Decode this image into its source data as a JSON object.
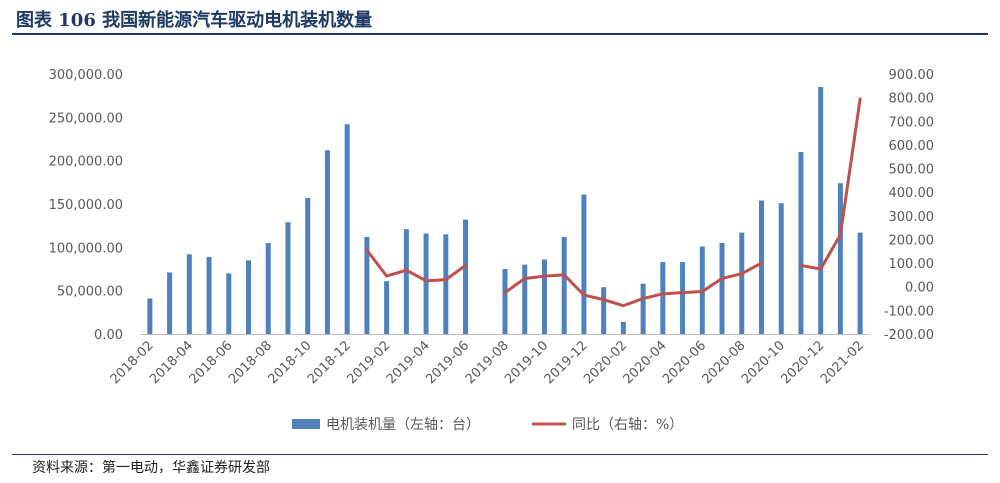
{
  "title": "图表 106 我国新能源汽车驱动电机装机数量",
  "source": "资料来源：第一电动，华鑫证券研发部",
  "colors": {
    "bar": "#4f81bd",
    "line": "#c0504d",
    "title": "#1f3a63"
  },
  "chart_data": {
    "type": "bar",
    "categories": [
      "2018-02",
      "2018-03",
      "2018-04",
      "2018-05",
      "2018-06",
      "2018-07",
      "2018-08",
      "2018-09",
      "2018-10",
      "2018-11",
      "2018-12",
      "2019-01",
      "2019-02",
      "2019-03",
      "2019-04",
      "2019-05",
      "2019-06",
      "2019-07",
      "2019-08",
      "2019-09",
      "2019-10",
      "2019-11",
      "2019-12",
      "2020-01",
      "2020-02",
      "2020-03",
      "2020-04",
      "2020-05",
      "2020-06",
      "2020-07",
      "2020-08",
      "2020-09",
      "2020-10",
      "2020-11",
      "2020-12",
      "2021-01",
      "2021-02"
    ],
    "x_tick_labels": [
      "2018-02",
      "2018-04",
      "2018-06",
      "2018-08",
      "2018-10",
      "2018-12",
      "2019-02",
      "2019-04",
      "2019-06",
      "2019-08",
      "2019-10",
      "2019-12",
      "2020-02",
      "2020-04",
      "2020-06",
      "2020-08",
      "2020-10",
      "2020-12",
      "2021-02"
    ],
    "series": [
      {
        "name": "电机装机量（左轴：台）",
        "type": "bar",
        "axis": "left",
        "values": [
          41000,
          71000,
          92000,
          89000,
          70000,
          85000,
          105000,
          129000,
          157000,
          212000,
          242000,
          112000,
          61000,
          121000,
          116000,
          115000,
          132000,
          null,
          75000,
          80000,
          86000,
          112000,
          161000,
          54000,
          14000,
          58000,
          83000,
          83000,
          101000,
          105000,
          117000,
          154000,
          151000,
          210000,
          285000,
          174000,
          117000
        ]
      },
      {
        "name": "同比（右轴：%）",
        "type": "line",
        "axis": "right",
        "values": [
          null,
          null,
          null,
          null,
          null,
          null,
          null,
          null,
          null,
          null,
          null,
          155,
          45,
          70,
          25,
          30,
          90,
          null,
          -25,
          35,
          45,
          50,
          -35,
          -55,
          -80,
          -50,
          -30,
          -25,
          -20,
          35,
          55,
          100,
          null,
          90,
          75,
          220,
          795
        ]
      }
    ],
    "y_left": {
      "min": 0,
      "max": 300000,
      "step": 50000,
      "tick_labels": [
        "0.00",
        "50,000.00",
        "100,000.00",
        "150,000.00",
        "200,000.00",
        "250,000.00",
        "300,000.00"
      ]
    },
    "y_right": {
      "min": -200,
      "max": 900,
      "step": 100,
      "tick_labels": [
        "-200.00",
        "-100.00",
        "0.00",
        "100.00",
        "200.00",
        "300.00",
        "400.00",
        "500.00",
        "600.00",
        "700.00",
        "800.00",
        "900.00"
      ]
    },
    "legend_position": "bottom",
    "grid": false
  }
}
